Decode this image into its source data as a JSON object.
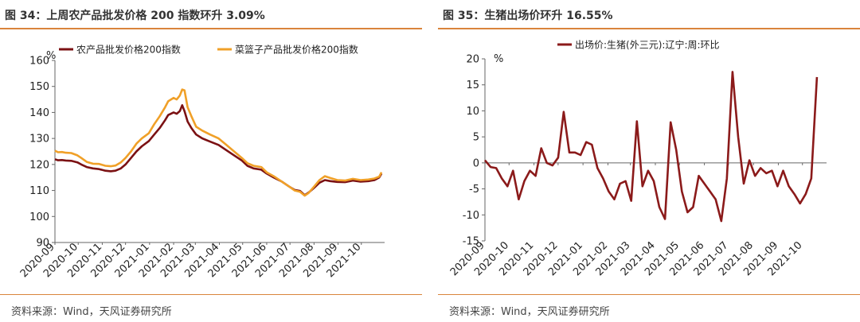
{
  "left": {
    "title": "图 34：上周农产品批发价格 200 指数环升 3.09%",
    "source": "资料来源：Wind，天风证券研究所",
    "chart_data": {
      "type": "line",
      "unit": "%",
      "ylim": [
        90,
        160
      ],
      "yticks": [
        90,
        100,
        110,
        120,
        130,
        140,
        150,
        160
      ],
      "xlim": [
        "2020-09-01",
        "2021-10-31"
      ],
      "x_tick_labels": [
        "2020-09",
        "2020-10",
        "2020-11",
        "2020-12",
        "2021-01",
        "2021-02",
        "2021-03",
        "2021-04",
        "2021-05",
        "2021-06",
        "2021-07",
        "2021-08",
        "2021-09",
        "2021-10"
      ],
      "legend_position": "top",
      "grid": false,
      "series": [
        {
          "name": "农产品批发价格200指数",
          "color": "#7b1113",
          "points": [
            [
              "2020-09-01",
              122.0
            ],
            [
              "2020-09-05",
              121.6
            ],
            [
              "2020-09-10",
              121.7
            ],
            [
              "2020-09-15",
              121.5
            ],
            [
              "2020-09-22",
              121.4
            ],
            [
              "2020-09-30",
              120.8
            ],
            [
              "2020-10-05",
              120.0
            ],
            [
              "2020-10-12",
              119.0
            ],
            [
              "2020-10-20",
              118.5
            ],
            [
              "2020-10-28",
              118.2
            ],
            [
              "2020-11-05",
              117.6
            ],
            [
              "2020-11-12",
              117.4
            ],
            [
              "2020-11-18",
              117.6
            ],
            [
              "2020-11-25",
              118.5
            ],
            [
              "2020-12-01",
              120.0
            ],
            [
              "2020-12-08",
              122.5
            ],
            [
              "2020-12-15",
              125.0
            ],
            [
              "2020-12-22",
              127.0
            ],
            [
              "2020-12-31",
              129.0
            ],
            [
              "2021-01-07",
              131.5
            ],
            [
              "2021-01-14",
              134.0
            ],
            [
              "2021-01-21",
              137.0
            ],
            [
              "2021-01-25",
              139.0
            ],
            [
              "2021-02-01",
              140.0
            ],
            [
              "2021-02-05",
              139.5
            ],
            [
              "2021-02-09",
              140.5
            ],
            [
              "2021-02-12",
              142.8
            ],
            [
              "2021-02-15",
              140.5
            ],
            [
              "2021-02-19",
              136.5
            ],
            [
              "2021-02-24",
              134.0
            ],
            [
              "2021-03-02",
              131.5
            ],
            [
              "2021-03-10",
              130.0
            ],
            [
              "2021-03-20",
              128.8
            ],
            [
              "2021-03-31",
              127.5
            ],
            [
              "2021-04-10",
              125.5
            ],
            [
              "2021-04-20",
              123.5
            ],
            [
              "2021-04-30",
              121.5
            ],
            [
              "2021-05-07",
              119.5
            ],
            [
              "2021-05-15",
              118.5
            ],
            [
              "2021-05-25",
              118.0
            ],
            [
              "2021-06-01",
              116.5
            ],
            [
              "2021-06-10",
              115.0
            ],
            [
              "2021-06-20",
              113.5
            ],
            [
              "2021-06-30",
              111.5
            ],
            [
              "2021-07-07",
              110.2
            ],
            [
              "2021-07-14",
              109.8
            ],
            [
              "2021-07-20",
              108.2
            ],
            [
              "2021-07-25",
              109.2
            ],
            [
              "2021-08-01",
              111.0
            ],
            [
              "2021-08-08",
              113.0
            ],
            [
              "2021-08-15",
              114.0
            ],
            [
              "2021-08-22",
              113.6
            ],
            [
              "2021-08-31",
              113.3
            ],
            [
              "2021-09-10",
              113.2
            ],
            [
              "2021-09-20",
              113.8
            ],
            [
              "2021-09-30",
              113.4
            ],
            [
              "2021-10-10",
              113.6
            ],
            [
              "2021-10-18",
              114.0
            ],
            [
              "2021-10-24",
              115.0
            ],
            [
              "2021-10-27",
              116.5
            ]
          ]
        },
        {
          "name": "菜篮子产品批发价格200指数",
          "color": "#f0a028",
          "points": [
            [
              "2020-09-01",
              125.3
            ],
            [
              "2020-09-05",
              124.7
            ],
            [
              "2020-09-10",
              124.8
            ],
            [
              "2020-09-15",
              124.5
            ],
            [
              "2020-09-22",
              124.4
            ],
            [
              "2020-09-30",
              123.5
            ],
            [
              "2020-10-05",
              122.5
            ],
            [
              "2020-10-12",
              121.0
            ],
            [
              "2020-10-20",
              120.3
            ],
            [
              "2020-10-28",
              120.2
            ],
            [
              "2020-11-05",
              119.5
            ],
            [
              "2020-11-12",
              119.3
            ],
            [
              "2020-11-18",
              119.6
            ],
            [
              "2020-11-25",
              120.8
            ],
            [
              "2020-12-01",
              122.5
            ],
            [
              "2020-12-08",
              125.0
            ],
            [
              "2020-12-15",
              128.0
            ],
            [
              "2020-12-22",
              130.0
            ],
            [
              "2020-12-31",
              132.0
            ],
            [
              "2021-01-07",
              135.5
            ],
            [
              "2021-01-14",
              138.5
            ],
            [
              "2021-01-21",
              142.0
            ],
            [
              "2021-01-25",
              144.3
            ],
            [
              "2021-02-01",
              145.6
            ],
            [
              "2021-02-05",
              145.0
            ],
            [
              "2021-02-09",
              146.5
            ],
            [
              "2021-02-12",
              148.8
            ],
            [
              "2021-02-15",
              148.5
            ],
            [
              "2021-02-19",
              142.0
            ],
            [
              "2021-02-24",
              138.5
            ],
            [
              "2021-03-02",
              134.5
            ],
            [
              "2021-03-10",
              133.0
            ],
            [
              "2021-03-20",
              131.5
            ],
            [
              "2021-03-31",
              130.0
            ],
            [
              "2021-04-10",
              127.5
            ],
            [
              "2021-04-20",
              125.0
            ],
            [
              "2021-04-30",
              122.5
            ],
            [
              "2021-05-07",
              120.5
            ],
            [
              "2021-05-15",
              119.5
            ],
            [
              "2021-05-25",
              119.0
            ],
            [
              "2021-06-01",
              117.0
            ],
            [
              "2021-06-10",
              115.5
            ],
            [
              "2021-06-20",
              113.5
            ],
            [
              "2021-06-30",
              111.5
            ],
            [
              "2021-07-07",
              110.0
            ],
            [
              "2021-07-14",
              109.5
            ],
            [
              "2021-07-20",
              108.0
            ],
            [
              "2021-07-25",
              109.0
            ],
            [
              "2021-08-01",
              111.5
            ],
            [
              "2021-08-08",
              114.0
            ],
            [
              "2021-08-15",
              115.5
            ],
            [
              "2021-08-22",
              114.8
            ],
            [
              "2021-08-31",
              114.0
            ],
            [
              "2021-09-10",
              113.8
            ],
            [
              "2021-09-20",
              114.5
            ],
            [
              "2021-09-30",
              114.0
            ],
            [
              "2021-10-10",
              114.2
            ],
            [
              "2021-10-18",
              114.6
            ],
            [
              "2021-10-24",
              115.3
            ],
            [
              "2021-10-27",
              117.0
            ]
          ]
        }
      ]
    }
  },
  "right": {
    "title": "图 35：生猪出场价环升 16.55%",
    "source": "资料来源：Wind，天风证券研究所",
    "chart_data": {
      "type": "line",
      "unit": "%",
      "ylim": [
        -15,
        20
      ],
      "yticks": [
        -15,
        -10,
        -5,
        0,
        5,
        10,
        15,
        20
      ],
      "xlim": [
        "2020-09-01",
        "2021-10-31"
      ],
      "x_tick_labels": [
        "2020-09",
        "2020-10",
        "2020-11",
        "2020-12",
        "2021-01",
        "2021-02",
        "2021-03",
        "2021-04",
        "2021-05",
        "2021-06",
        "2021-07",
        "2021-08",
        "2021-09",
        "2021-10"
      ],
      "legend_position": "top",
      "grid": false,
      "series": [
        {
          "name": "出场价:生猪(外三元):辽宁:周:环比",
          "color": "#8b1a1a",
          "points": [
            [
              "2020-09-01",
              0.5
            ],
            [
              "2020-09-08",
              -0.8
            ],
            [
              "2020-09-15",
              -1.0
            ],
            [
              "2020-09-22",
              -3.0
            ],
            [
              "2020-09-29",
              -4.5
            ],
            [
              "2020-10-06",
              -1.5
            ],
            [
              "2020-10-13",
              -7.0
            ],
            [
              "2020-10-20",
              -3.5
            ],
            [
              "2020-10-27",
              -1.5
            ],
            [
              "2020-11-03",
              -2.5
            ],
            [
              "2020-11-10",
              2.8
            ],
            [
              "2020-11-17",
              0.0
            ],
            [
              "2020-11-24",
              -0.5
            ],
            [
              "2020-12-01",
              1.0
            ],
            [
              "2020-12-08",
              9.8
            ],
            [
              "2020-12-15",
              2.0
            ],
            [
              "2020-12-22",
              2.0
            ],
            [
              "2020-12-29",
              1.5
            ],
            [
              "2021-01-05",
              4.0
            ],
            [
              "2021-01-12",
              3.5
            ],
            [
              "2021-01-19",
              -1.0
            ],
            [
              "2021-01-26",
              -3.0
            ],
            [
              "2021-02-02",
              -5.5
            ],
            [
              "2021-02-09",
              -7.0
            ],
            [
              "2021-02-16",
              -4.0
            ],
            [
              "2021-02-23",
              -3.5
            ],
            [
              "2021-03-02",
              -7.3
            ],
            [
              "2021-03-09",
              8.0
            ],
            [
              "2021-03-16",
              -4.5
            ],
            [
              "2021-03-23",
              -1.5
            ],
            [
              "2021-03-30",
              -3.5
            ],
            [
              "2021-04-06",
              -8.5
            ],
            [
              "2021-04-13",
              -10.8
            ],
            [
              "2021-04-20",
              7.8
            ],
            [
              "2021-04-27",
              2.5
            ],
            [
              "2021-05-04",
              -5.5
            ],
            [
              "2021-05-11",
              -9.5
            ],
            [
              "2021-05-18",
              -8.5
            ],
            [
              "2021-05-25",
              -2.5
            ],
            [
              "2021-06-01",
              -4.0
            ],
            [
              "2021-06-08",
              -5.5
            ],
            [
              "2021-06-15",
              -7.0
            ],
            [
              "2021-06-22",
              -11.2
            ],
            [
              "2021-06-29",
              -3.0
            ],
            [
              "2021-07-06",
              17.5
            ],
            [
              "2021-07-13",
              5.0
            ],
            [
              "2021-07-20",
              -4.0
            ],
            [
              "2021-07-27",
              0.5
            ],
            [
              "2021-08-03",
              -2.5
            ],
            [
              "2021-08-10",
              -1.0
            ],
            [
              "2021-08-17",
              -2.0
            ],
            [
              "2021-08-24",
              -1.5
            ],
            [
              "2021-08-31",
              -4.5
            ],
            [
              "2021-09-07",
              -1.5
            ],
            [
              "2021-09-14",
              -4.5
            ],
            [
              "2021-09-21",
              -6.0
            ],
            [
              "2021-09-28",
              -7.8
            ],
            [
              "2021-10-05",
              -6.0
            ],
            [
              "2021-10-12",
              -3.0
            ],
            [
              "2021-10-19",
              16.5
            ]
          ]
        }
      ]
    }
  }
}
